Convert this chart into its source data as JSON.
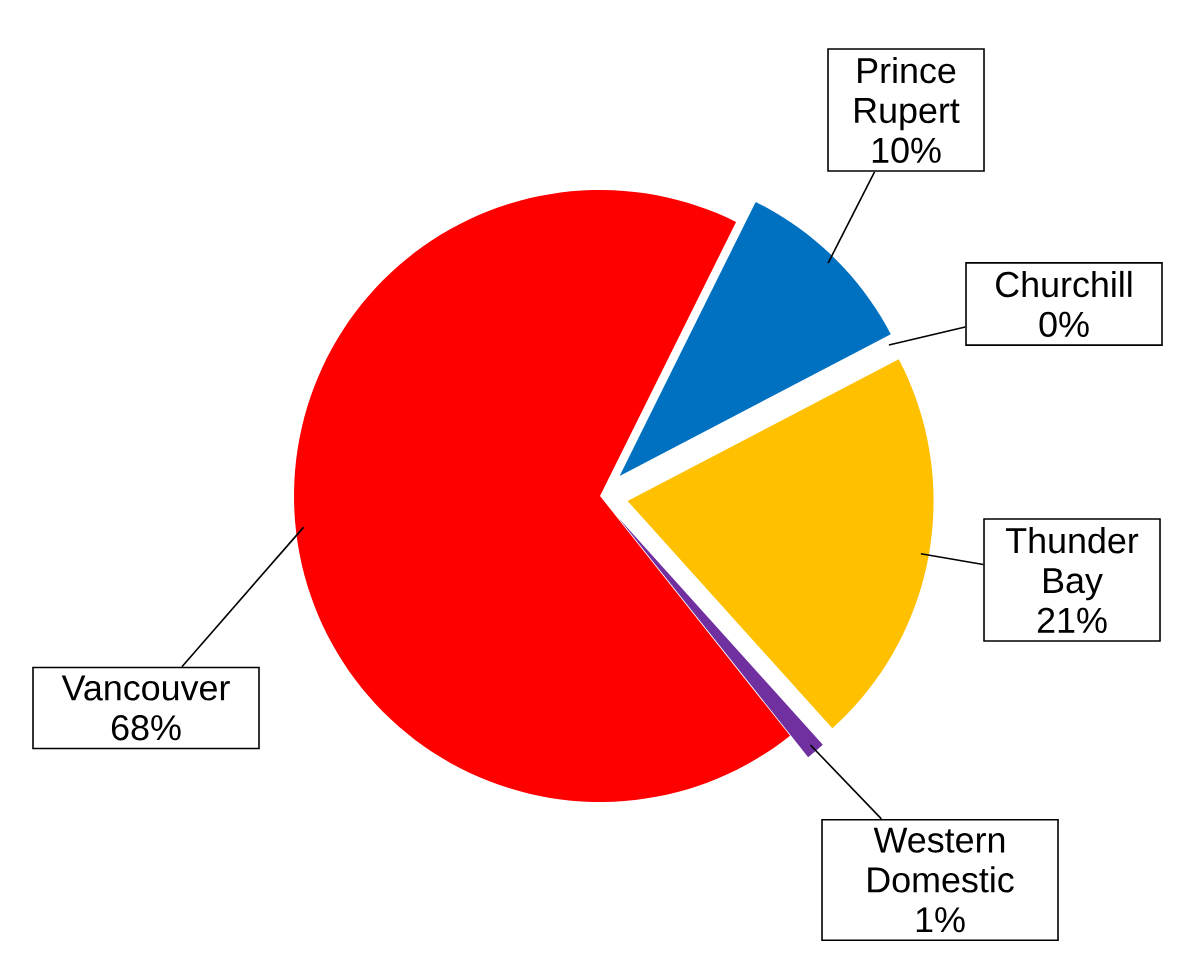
{
  "chart_data": {
    "type": "pie",
    "categories": [
      "Prince Rupert",
      "Churchill",
      "Thunder Bay",
      "Western Domestic",
      "Vancouver"
    ],
    "values": [
      10,
      0,
      21,
      1,
      68
    ],
    "colors": [
      "#0070c0",
      "#c0504d",
      "#ffc000",
      "#7030a0",
      "#ff0000"
    ],
    "value_labels": [
      "10%",
      "0%",
      "21%",
      "1%",
      "68%"
    ]
  }
}
